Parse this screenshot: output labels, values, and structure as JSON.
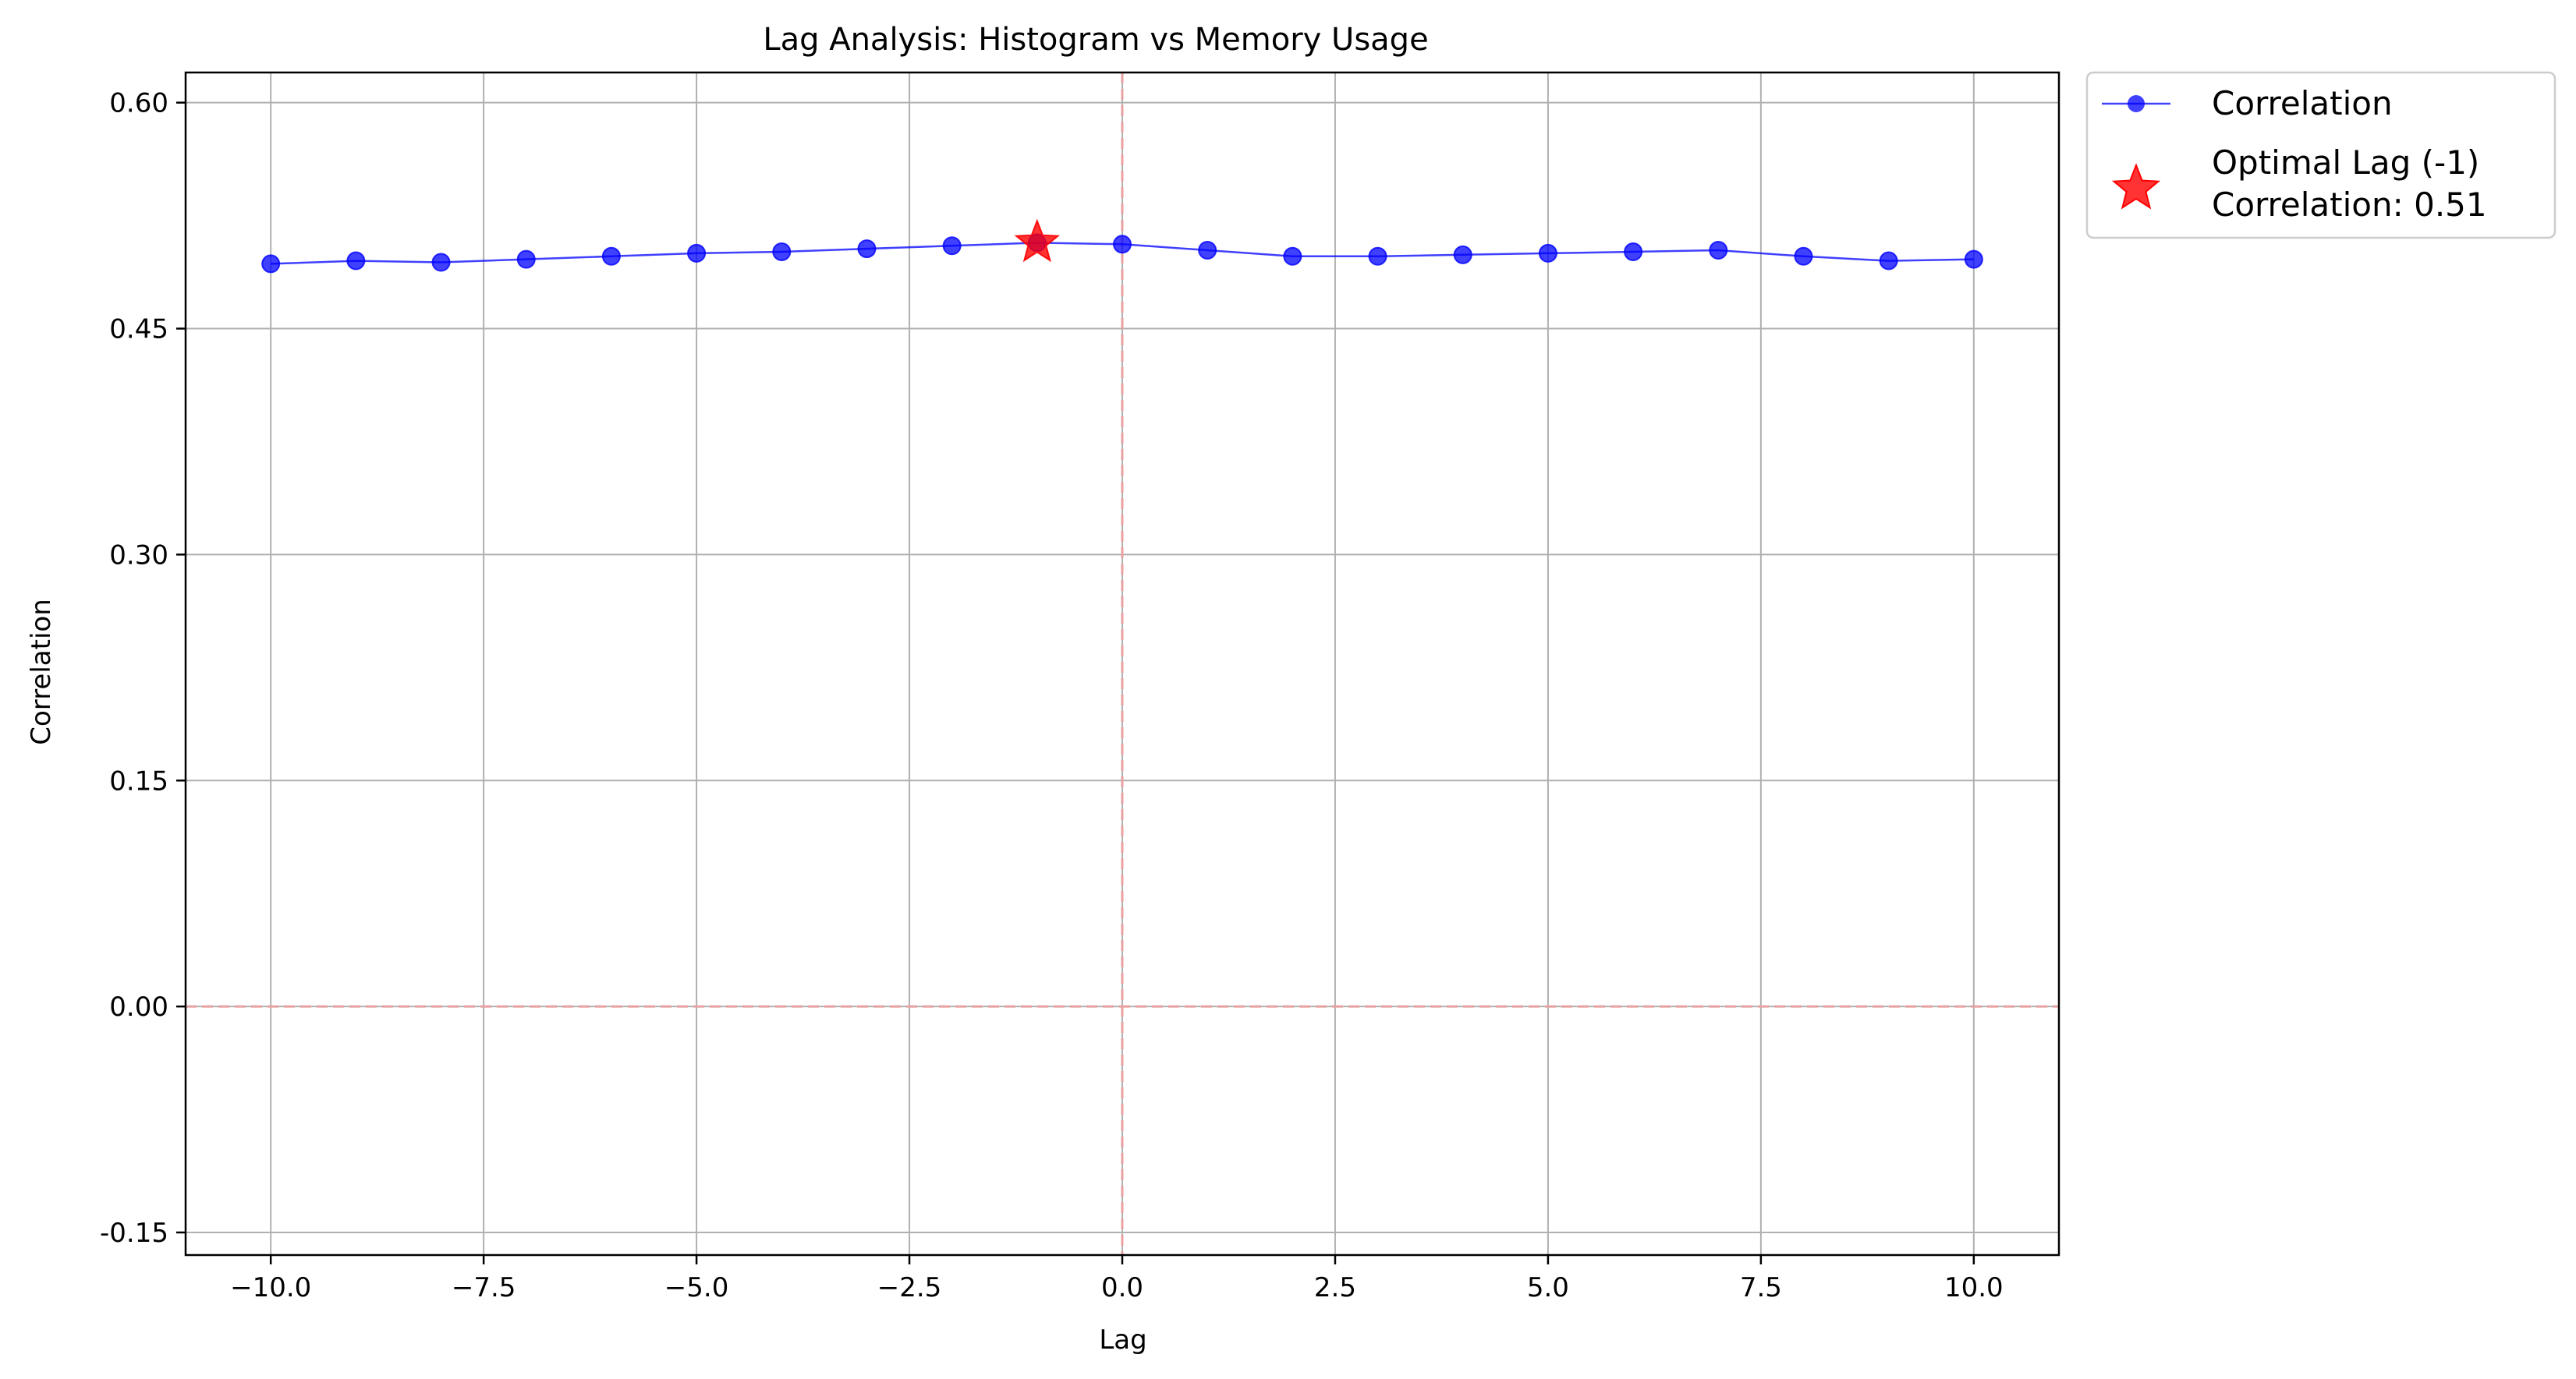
{
  "chart_data": {
    "type": "line",
    "title": "Lag Analysis: Histogram vs Memory Usage",
    "xlabel": "Lag",
    "ylabel": "Correlation",
    "xlim": [
      -11,
      11
    ],
    "ylim": [
      -0.165,
      0.62
    ],
    "x_ticks": [
      -10.0,
      -7.5,
      -5.0,
      -2.5,
      0.0,
      2.5,
      5.0,
      7.5,
      10.0
    ],
    "x_tick_labels": [
      "−10.0",
      "−7.5",
      "−5.0",
      "−2.5",
      "0.0",
      "2.5",
      "5.0",
      "7.5",
      "10.0"
    ],
    "y_ticks": [
      -0.15,
      0.0,
      0.15,
      0.3,
      0.45,
      0.6
    ],
    "y_tick_labels": [
      "-0.15",
      "0.00",
      "0.15",
      "0.30",
      "0.45",
      "0.60"
    ],
    "grid": true,
    "legend_position": "outside-top-right",
    "reference_lines": [
      {
        "axis": "x",
        "value": 0,
        "style": "dashed",
        "color": "#e8a0a0"
      },
      {
        "axis": "y",
        "value": 0,
        "style": "dashed",
        "color": "#e8a0a0"
      }
    ],
    "series": [
      {
        "name": "Correlation",
        "color": "#0000ff",
        "marker": "circle",
        "x": [
          -10,
          -9,
          -8,
          -7,
          -6,
          -5,
          -4,
          -3,
          -2,
          -1,
          0,
          1,
          2,
          3,
          4,
          5,
          6,
          7,
          8,
          9,
          10
        ],
        "y": [
          0.493,
          0.495,
          0.494,
          0.496,
          0.498,
          0.5,
          0.501,
          0.503,
          0.505,
          0.507,
          0.506,
          0.502,
          0.498,
          0.498,
          0.499,
          0.5,
          0.501,
          0.502,
          0.498,
          0.495,
          0.496
        ]
      }
    ],
    "highlight": {
      "name": "Optimal Lag (-1)\nCorrelation: 0.51",
      "legend_lines": [
        "Optimal Lag (-1)",
        "Correlation: 0.51"
      ],
      "x": -1,
      "y": 0.507,
      "marker": "star",
      "color": "#ff0000"
    }
  }
}
